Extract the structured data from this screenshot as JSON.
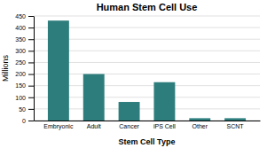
{
  "chart_data": {
    "type": "bar",
    "title": "Human Stem Cell Use",
    "xlabel": "Stem Cell Type",
    "ylabel": "Millions",
    "categories": [
      "Embryonic",
      "Adult",
      "Cancer",
      "iPS Cell",
      "Other",
      "SCNT"
    ],
    "values": [
      430,
      200,
      80,
      165,
      10,
      10
    ],
    "color": "#2e7d7d",
    "ylim": [
      0,
      450
    ],
    "yticks": [
      0,
      50,
      100,
      150,
      200,
      250,
      300,
      350,
      400,
      450
    ],
    "grid": true
  }
}
